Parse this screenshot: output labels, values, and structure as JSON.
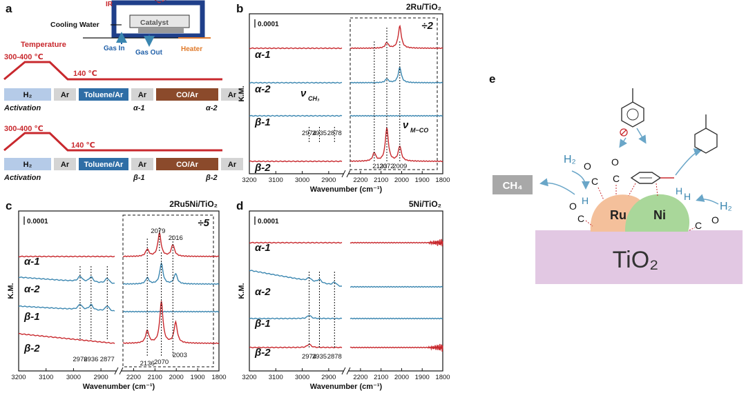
{
  "panel_labels": {
    "a": "a",
    "b": "b",
    "c": "c",
    "d": "d",
    "e": "e"
  },
  "setup": {
    "ir": "IR",
    "cooling_water": "Cooling Water",
    "catalyst": "Catalyst",
    "gas_in": "Gas In",
    "gas_out": "Gas Out",
    "heater": "Heater"
  },
  "protocol": {
    "temperature": "Temperature",
    "t_high": "300-400 ℃",
    "t_low": "140 ℃",
    "steps": [
      "H₂",
      "Ar",
      "Toluene/Ar",
      "Ar",
      "CO/Ar",
      "Ar"
    ],
    "activation": "Activation",
    "markers_alpha": [
      "α-1",
      "α-2"
    ],
    "markers_beta": [
      "β-1",
      "β-2"
    ]
  },
  "colors": {
    "red": "#c8282d",
    "blue": "#3a86b0",
    "h2": "#b5cbe8",
    "ar": "#d4d4d4",
    "tol": "#2f6ea6",
    "co": "#8b4a2b",
    "ru": "#f4c09b",
    "ni": "#a9d79a",
    "tio2": "#e2c8e3"
  },
  "chart_data": [
    {
      "panel": "b",
      "type": "line",
      "title": "2Ru/TiO₂",
      "xlabel": "Wavenumber (cm⁻¹)",
      "ylabel": "K.M.",
      "scale_bar": "0.0001",
      "divide": "÷2",
      "x_ticks_left": [
        "3200",
        "3100",
        "3000",
        "2900"
      ],
      "x_ticks_right": [
        "2200",
        "2100",
        "2000",
        "1900",
        "1800"
      ],
      "series": [
        {
          "name": "α-1",
          "color": "red",
          "peaks_cm1": [
            2072,
            2009
          ]
        },
        {
          "name": "α-2",
          "color": "blue",
          "peaks_cm1": [
            2072,
            2009
          ]
        },
        {
          "name": "β-1",
          "color": "blue",
          "peaks_cm1": [
            2974,
            2935,
            2878
          ]
        },
        {
          "name": "β-2",
          "color": "red",
          "peaks_cm1": [
            2133,
            2072,
            2009
          ]
        }
      ],
      "peak_labels": [
        "2974",
        "2935",
        "2878",
        "2133",
        "2072",
        "2009"
      ],
      "annotation_ch": "CH₃",
      "annotation_co": "M−CO"
    },
    {
      "panel": "c",
      "type": "line",
      "title": "2Ru5Ni/TiO₂",
      "xlabel": "Wavenumber (cm⁻¹)",
      "ylabel": "K.M.",
      "scale_bar": "0.0001",
      "divide": "÷5",
      "x_ticks_left": [
        "3200",
        "3100",
        "3000",
        "2900"
      ],
      "x_ticks_right": [
        "2200",
        "2100",
        "2000",
        "1900",
        "1800"
      ],
      "series": [
        {
          "name": "α-1",
          "color": "red",
          "peaks_cm1": [
            2136,
            2079,
            2016
          ]
        },
        {
          "name": "α-2",
          "color": "blue",
          "peaks_cm1": [
            2976,
            2936,
            2877,
            2136,
            2070,
            2003
          ]
        },
        {
          "name": "β-1",
          "color": "blue",
          "peaks_cm1": [
            2976,
            2936,
            2877
          ]
        },
        {
          "name": "β-2",
          "color": "red",
          "peaks_cm1": [
            2136,
            2070,
            2003
          ]
        }
      ],
      "peak_labels": [
        "2079",
        "2016",
        "2976",
        "2936",
        "2877",
        "2136",
        "2070",
        "2003"
      ]
    },
    {
      "panel": "d",
      "type": "line",
      "title": "5Ni/TiO₂",
      "xlabel": "Wavenumber (cm⁻¹)",
      "ylabel": "K.M.",
      "scale_bar": "0.0001",
      "x_ticks_left": [
        "3200",
        "3100",
        "3000",
        "2900"
      ],
      "x_ticks_right": [
        "2200",
        "2100",
        "2000",
        "1900",
        "1800"
      ],
      "series": [
        {
          "name": "α-1",
          "color": "red",
          "peaks_cm1": []
        },
        {
          "name": "α-2",
          "color": "blue",
          "peaks_cm1": [
            2974,
            2935,
            2878
          ]
        },
        {
          "name": "β-1",
          "color": "blue",
          "peaks_cm1": [
            2974
          ]
        },
        {
          "name": "β-2",
          "color": "red",
          "peaks_cm1": [
            2974
          ]
        }
      ],
      "peak_labels": [
        "2974",
        "2935",
        "2878"
      ]
    }
  ],
  "scheme": {
    "ch4": "CH₄",
    "h2": "H₂",
    "h": "H",
    "co_c": "C",
    "co_o": "O",
    "ru": "Ru",
    "ni": "Ni",
    "support": "TiO₂"
  }
}
